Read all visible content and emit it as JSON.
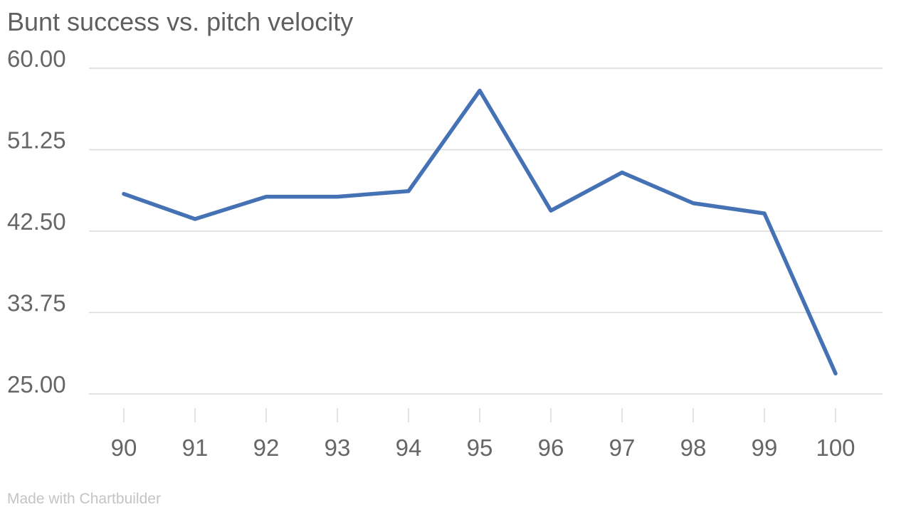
{
  "chart_data": {
    "type": "line",
    "title": "Bunt success vs. pitch velocity",
    "xlabel": "",
    "ylabel": "",
    "x": [
      "90",
      "91",
      "92",
      "93",
      "94",
      "95",
      "96",
      "97",
      "98",
      "99",
      "100"
    ],
    "series": [
      {
        "values": [
          46.5,
          43.8,
          46.2,
          46.2,
          46.8,
          57.6,
          44.7,
          48.8,
          45.5,
          44.4,
          27.2
        ]
      }
    ],
    "ylim": [
      25,
      60
    ],
    "yticks": [
      "60.00",
      "51.25",
      "42.50",
      "33.75",
      "25.00"
    ],
    "grid": true,
    "legend": "none",
    "colors": {
      "line": "#4472b4",
      "grid": "#d9d9d9",
      "tick_label": "#666666"
    }
  },
  "footer": {
    "credit": "Made with Chartbuilder"
  }
}
